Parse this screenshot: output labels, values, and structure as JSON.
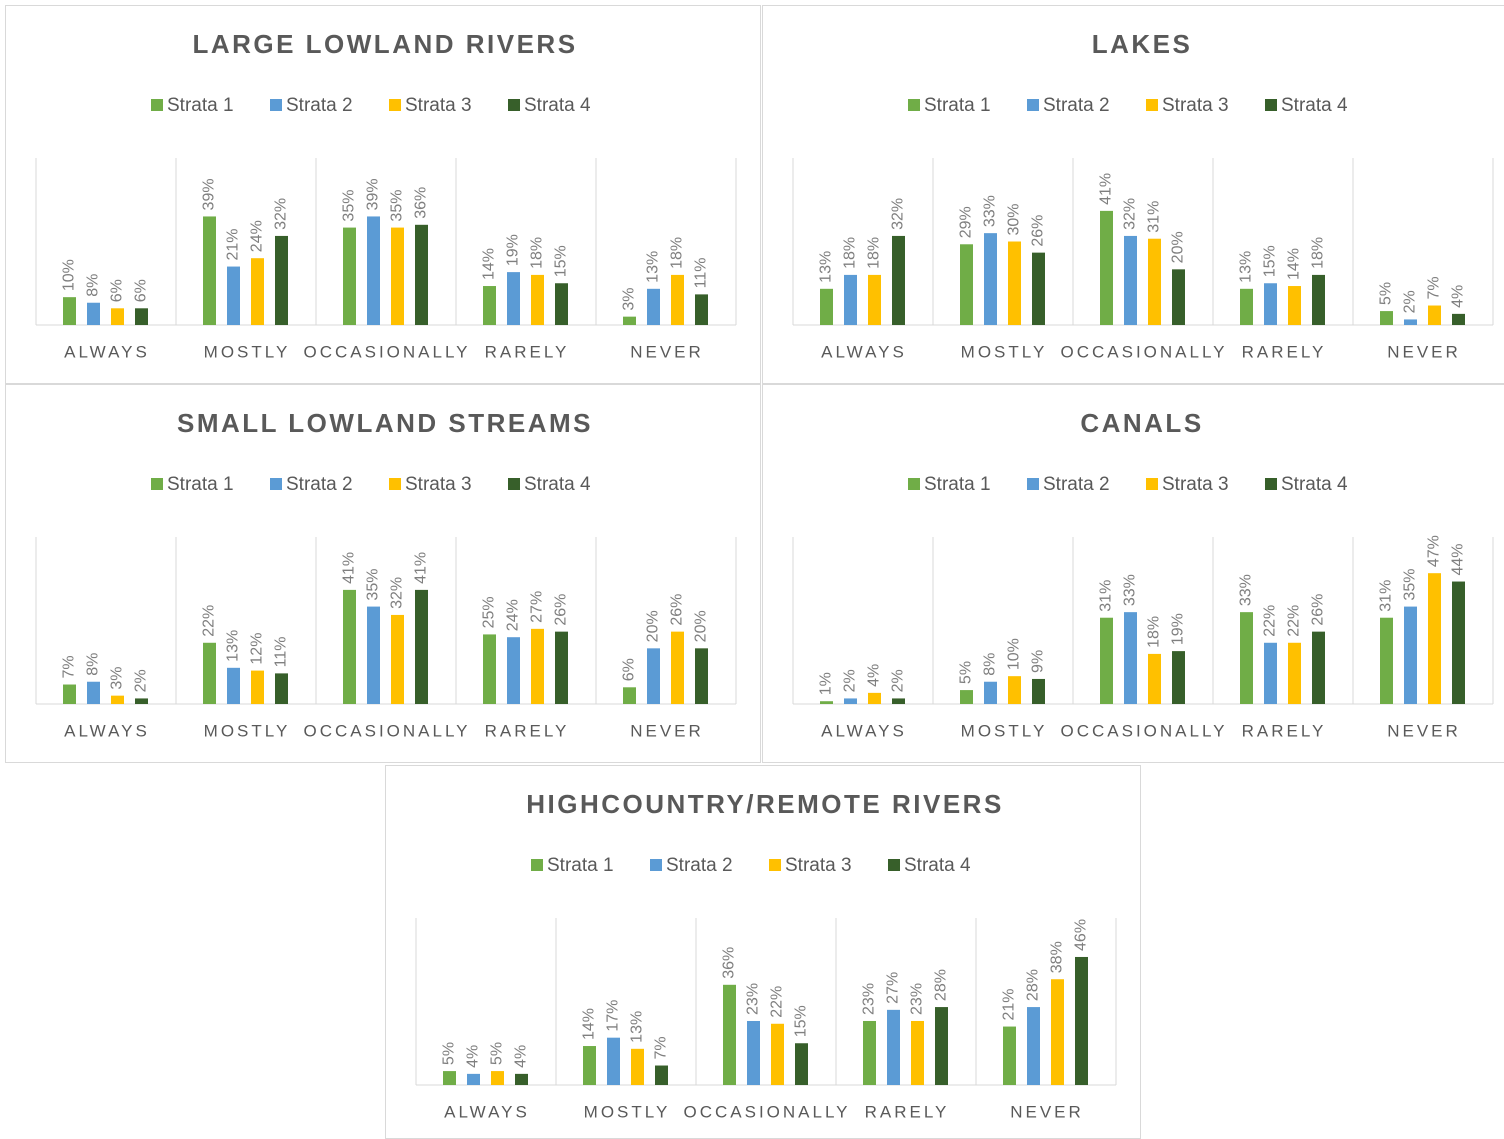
{
  "chart_data": [
    {
      "type": "bar",
      "title": "LARGE LOWLAND RIVERS",
      "categories": [
        "ALWAYS",
        "MOSTLY",
        "OCCASIONALLY",
        "RARELY",
        "NEVER"
      ],
      "ylim": [
        0,
        60
      ],
      "series": [
        {
          "name": "Strata 1",
          "color": "#70ad47",
          "values": [
            10,
            39,
            35,
            14,
            3
          ],
          "value_labels": [
            "10%",
            "39%",
            "35%",
            "14%",
            "3%"
          ]
        },
        {
          "name": "Strata 2",
          "color": "#5b9bd5",
          "values": [
            8,
            21,
            39,
            19,
            13
          ],
          "value_labels": [
            "8%",
            "21%",
            "39%",
            "19%",
            "13%"
          ]
        },
        {
          "name": "Strata 3",
          "color": "#ffc000",
          "values": [
            6,
            24,
            35,
            18,
            18
          ],
          "value_labels": [
            "6%",
            "24%",
            "35%",
            "18%",
            "18%"
          ]
        },
        {
          "name": "Strata 4",
          "color": "#375f2a",
          "values": [
            6,
            32,
            36,
            15,
            11
          ],
          "value_labels": [
            "6%",
            "32%",
            "36%",
            "15%",
            "11%"
          ]
        }
      ]
    },
    {
      "type": "bar",
      "title": "LAKES",
      "categories": [
        "ALWAYS",
        "MOSTLY",
        "OCCASIONALLY",
        "RARELY",
        "NEVER"
      ],
      "ylim": [
        0,
        60
      ],
      "series": [
        {
          "name": "Strata 1",
          "color": "#70ad47",
          "values": [
            13,
            29,
            41,
            13,
            5
          ],
          "value_labels": [
            "13%",
            "29%",
            "41%",
            "13%",
            "5%"
          ]
        },
        {
          "name": "Strata 2",
          "color": "#5b9bd5",
          "values": [
            18,
            33,
            32,
            15,
            2
          ],
          "value_labels": [
            "18%",
            "33%",
            "32%",
            "15%",
            "2%"
          ]
        },
        {
          "name": "Strata 3",
          "color": "#ffc000",
          "values": [
            18,
            30,
            31,
            14,
            7
          ],
          "value_labels": [
            "18%",
            "30%",
            "31%",
            "14%",
            "7%"
          ]
        },
        {
          "name": "Strata 4",
          "color": "#375f2a",
          "values": [
            32,
            26,
            20,
            18,
            4
          ],
          "value_labels": [
            "32%",
            "26%",
            "20%",
            "18%",
            "4%"
          ]
        }
      ]
    },
    {
      "type": "bar",
      "title": "SMALL LOWLAND STREAMS",
      "categories": [
        "ALWAYS",
        "MOSTLY",
        "OCCASIONALLY",
        "RARELY",
        "NEVER"
      ],
      "ylim": [
        0,
        60
      ],
      "series": [
        {
          "name": "Strata 1",
          "color": "#70ad47",
          "values": [
            7,
            22,
            41,
            25,
            6
          ],
          "value_labels": [
            "7%",
            "22%",
            "41%",
            "25%",
            "6%"
          ]
        },
        {
          "name": "Strata 2",
          "color": "#5b9bd5",
          "values": [
            8,
            13,
            35,
            24,
            20
          ],
          "value_labels": [
            "8%",
            "13%",
            "35%",
            "24%",
            "20%"
          ]
        },
        {
          "name": "Strata 3",
          "color": "#ffc000",
          "values": [
            3,
            12,
            32,
            27,
            26
          ],
          "value_labels": [
            "3%",
            "12%",
            "32%",
            "27%",
            "26%"
          ]
        },
        {
          "name": "Strata 4",
          "color": "#375f2a",
          "values": [
            2,
            11,
            41,
            26,
            20
          ],
          "value_labels": [
            "2%",
            "11%",
            "41%",
            "26%",
            "20%"
          ]
        }
      ]
    },
    {
      "type": "bar",
      "title": "CANALS",
      "categories": [
        "ALWAYS",
        "MOSTLY",
        "OCCASIONALLY",
        "RARELY",
        "NEVER"
      ],
      "ylim": [
        0,
        60
      ],
      "series": [
        {
          "name": "Strata 1",
          "color": "#70ad47",
          "values": [
            1,
            5,
            31,
            33,
            31
          ],
          "value_labels": [
            "1%",
            "5%",
            "31%",
            "33%",
            "31%"
          ]
        },
        {
          "name": "Strata 2",
          "color": "#5b9bd5",
          "values": [
            2,
            8,
            33,
            22,
            35
          ],
          "value_labels": [
            "2%",
            "8%",
            "33%",
            "22%",
            "35%"
          ]
        },
        {
          "name": "Strata 3",
          "color": "#ffc000",
          "values": [
            4,
            10,
            18,
            22,
            47
          ],
          "value_labels": [
            "4%",
            "10%",
            "18%",
            "22%",
            "47%"
          ]
        },
        {
          "name": "Strata 4",
          "color": "#375f2a",
          "values": [
            2,
            9,
            19,
            26,
            44
          ],
          "value_labels": [
            "2%",
            "9%",
            "19%",
            "26%",
            "44%"
          ]
        }
      ]
    },
    {
      "type": "bar",
      "title": "HIGHCOUNTRY/REMOTE RIVERS",
      "categories": [
        "ALWAYS",
        "MOSTLY",
        "OCCASIONALLY",
        "RARELY",
        "NEVER"
      ],
      "ylim": [
        0,
        60
      ],
      "series": [
        {
          "name": "Strata 1",
          "color": "#70ad47",
          "values": [
            5,
            14,
            36,
            23,
            21
          ],
          "value_labels": [
            "5%",
            "14%",
            "36%",
            "23%",
            "21%"
          ]
        },
        {
          "name": "Strata 2",
          "color": "#5b9bd5",
          "values": [
            4,
            17,
            23,
            27,
            28
          ],
          "value_labels": [
            "4%",
            "17%",
            "23%",
            "27%",
            "28%"
          ]
        },
        {
          "name": "Strata 3",
          "color": "#ffc000",
          "values": [
            5,
            13,
            22,
            23,
            38
          ],
          "value_labels": [
            "5%",
            "13%",
            "22%",
            "23%",
            "38%"
          ]
        },
        {
          "name": "Strata 4",
          "color": "#375f2a",
          "values": [
            4,
            7,
            15,
            28,
            46
          ],
          "value_labels": [
            "4%",
            "7%",
            "15%",
            "28%",
            "46%"
          ]
        }
      ]
    }
  ]
}
